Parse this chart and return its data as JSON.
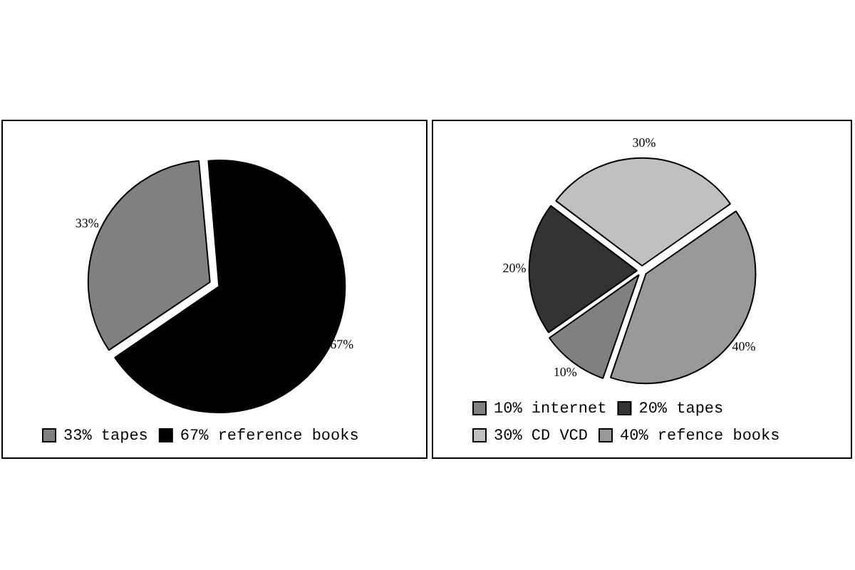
{
  "chart_data": [
    {
      "type": "pie",
      "categories": [
        "33% tapes",
        "67% reference books"
      ],
      "values": [
        33,
        67
      ],
      "colors": [
        "#808080",
        "#000000"
      ],
      "value_labels": [
        "33%",
        "67%"
      ],
      "legend": "bottom"
    },
    {
      "type": "pie",
      "categories": [
        "10% internet",
        "20% tapes",
        "30% CD VCD",
        "40% refence books"
      ],
      "values": [
        10,
        20,
        30,
        40
      ],
      "colors": [
        "#808080",
        "#333333",
        "#c0c0c0",
        "#999999"
      ],
      "value_labels": [
        "10%",
        "20%",
        "30%",
        "40%"
      ],
      "legend": "bottom"
    }
  ]
}
